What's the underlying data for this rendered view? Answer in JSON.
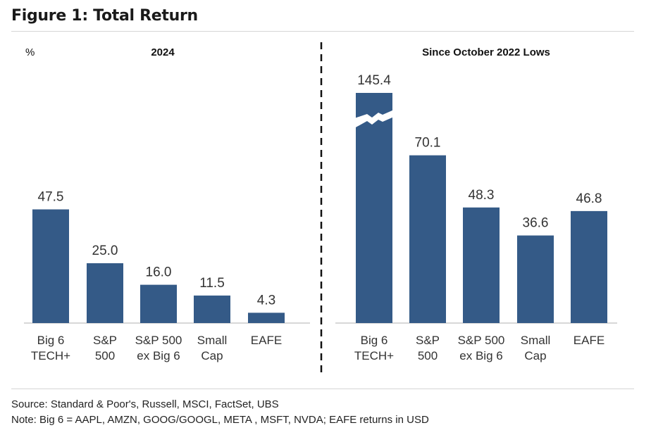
{
  "figure_title": "Figure 1: Total Return",
  "unit_label": "%",
  "source": "Source: Standard & Poor's, Russell, MSCI, FactSet, UBS",
  "note": "Note: Big 6 = AAPL, AMZN, GOOG/GOOGL, META , MSFT, NVDA; EAFE returns in USD",
  "colors": {
    "bar": "#345a87",
    "axis": "#bfbfbf",
    "text": "#333333"
  },
  "chart_data": [
    {
      "type": "bar",
      "title": "2024",
      "xlabel": "",
      "ylabel": "%",
      "ylim": [
        0,
        70
      ],
      "categories": [
        [
          "Big 6",
          "TECH+"
        ],
        [
          "S&P",
          "500"
        ],
        [
          "S&P 500",
          "ex Big 6"
        ],
        [
          "Small",
          "Cap"
        ],
        [
          "EAFE"
        ]
      ],
      "values": [
        47.5,
        25.0,
        16.0,
        11.5,
        4.3
      ],
      "value_labels": [
        "47.5",
        "25.0",
        "16.0",
        "11.5",
        "4.3"
      ]
    },
    {
      "type": "bar",
      "title": "Since October 2022 Lows",
      "xlabel": "",
      "ylabel": "%",
      "ylim": [
        0,
        70
      ],
      "axis_break": {
        "bar_index": 0,
        "note": "bar truncated with break symbol"
      },
      "categories": [
        [
          "Big 6",
          "TECH+"
        ],
        [
          "S&P",
          "500"
        ],
        [
          "S&P 500",
          "ex Big 6"
        ],
        [
          "Small",
          "Cap"
        ],
        [
          "EAFE"
        ]
      ],
      "values": [
        145.4,
        70.1,
        48.3,
        36.6,
        46.8
      ],
      "value_labels": [
        "145.4",
        "70.1",
        "48.3",
        "36.6",
        "46.8"
      ]
    }
  ]
}
